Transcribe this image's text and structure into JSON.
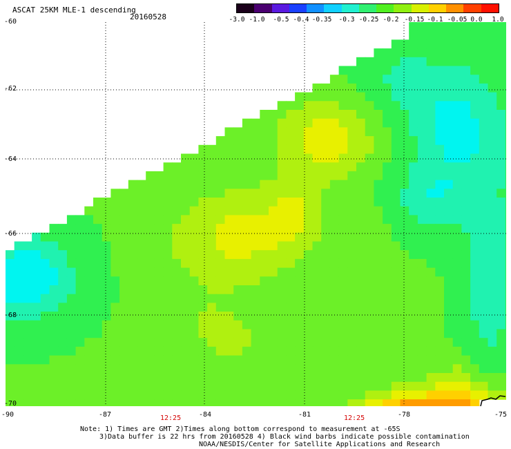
{
  "header": {
    "title": "ASCAT 25KM MLE-1 descending",
    "date": "20160528"
  },
  "colorbar": {
    "labels": [
      "-3.0",
      "-1.0",
      "-0.5",
      "-0.4",
      "-0.35",
      "-0.3",
      "-0.25",
      "-0.2",
      "-0.15",
      "-0.1",
      "-0.05",
      "0.0",
      "1.0"
    ],
    "colors": [
      "#1a001a",
      "#4a0070",
      "#5a1ae0",
      "#1a40ff",
      "#1090ff",
      "#10d0ff",
      "#20f0d0",
      "#30f070",
      "#50f020",
      "#90f010",
      "#d8f000",
      "#ffd000",
      "#ff9000",
      "#ff4000",
      "#ff1000"
    ]
  },
  "map": {
    "lat_labels": [
      "-60",
      "-62",
      "-64",
      "-66",
      "-68",
      "-70"
    ],
    "lon_labels": [
      "-90",
      "-87",
      "-84",
      "-81",
      "-78",
      "-75"
    ],
    "pass_times": [
      "12:25",
      "12:25"
    ],
    "colors": {
      "cyan": "#00f5f0",
      "teal": "#20f2b0",
      "green": "#30f050",
      "lime": "#6cf028",
      "yellowgreen": "#b0f010",
      "yellow": "#e8f000",
      "gold": "#ffd000",
      "orange": "#ff9c00",
      "darkorange": "#ff7a00"
    }
  },
  "footer": {
    "note_line1": "Note: 1) Times are GMT 2)Times along bottom correspond to measurement at -65S",
    "note_line2": "3)Data buffer is 22 hrs from 20160528 4) Black wind barbs indicate possible contamination",
    "credit": "NOAA/NESDIS/Center for Satellite Applications and Research"
  }
}
